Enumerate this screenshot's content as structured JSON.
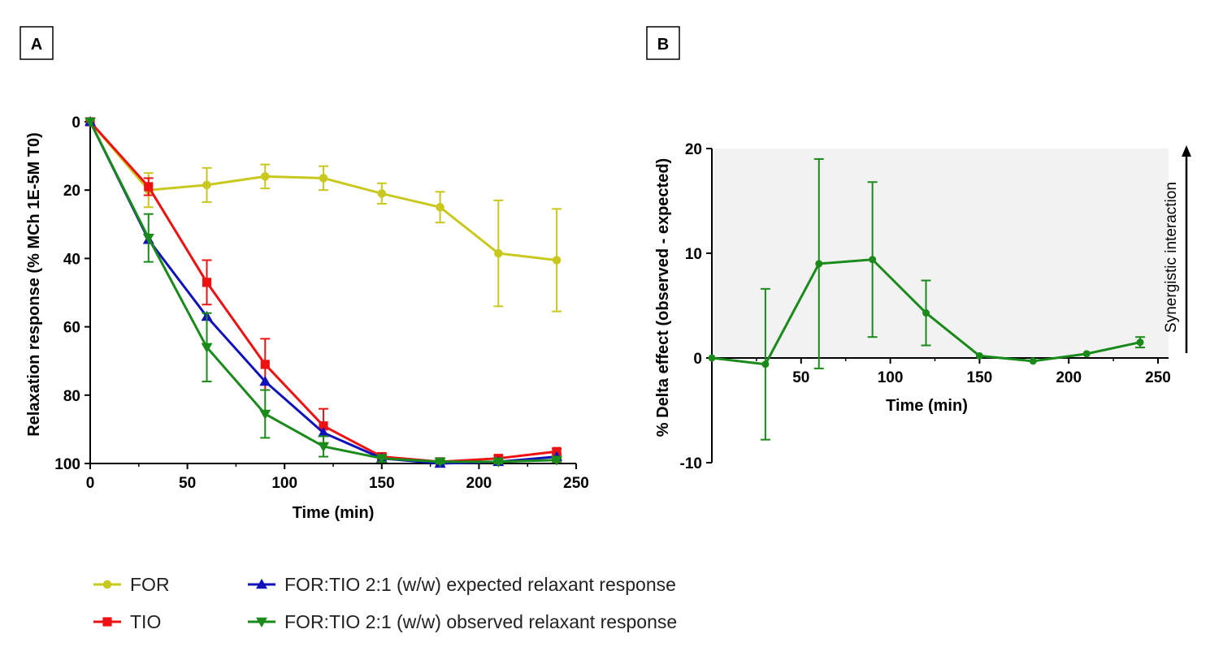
{
  "colors": {
    "FOR": "#c8c81e",
    "TIO": "#ee1111",
    "expected": "#1111bb",
    "observed": "#1a8a1a",
    "shade": "#f2f2f2"
  },
  "panels": {
    "A": "A",
    "B": "B"
  },
  "chart_data": [
    {
      "panel": "A",
      "type": "line",
      "xlabel": "Time (min)",
      "ylabel": "Relaxation response (% MCh 1E-5M T0)",
      "xlim": [
        0,
        250
      ],
      "ylim": [
        100,
        0
      ],
      "y_inverted": true,
      "xticks": [
        "0",
        "50",
        "100",
        "150",
        "200",
        "250"
      ],
      "yticks": [
        "0",
        "20",
        "40",
        "60",
        "80",
        "100"
      ],
      "series": [
        {
          "name": "FOR",
          "marker": "circle",
          "x": [
            0,
            30,
            60,
            90,
            120,
            150,
            180,
            210,
            240
          ],
          "y": [
            0,
            20,
            18.5,
            16,
            16.5,
            21,
            25,
            38.5,
            40.5
          ],
          "err": [
            0,
            5,
            5,
            3.5,
            3.5,
            3,
            4.5,
            15.5,
            15
          ]
        },
        {
          "name": "TIO",
          "marker": "square",
          "x": [
            0,
            30,
            60,
            90,
            120,
            150,
            180,
            210,
            240
          ],
          "y": [
            0,
            19,
            47,
            71,
            89,
            98,
            99.5,
            98.5,
            96.5
          ],
          "err": [
            0,
            2.5,
            6.5,
            7.5,
            5,
            1,
            0.5,
            0.8,
            0.8
          ]
        },
        {
          "name": "FOR:TIO 2:1 (w/w) expected relaxant response",
          "marker": "triangle-up",
          "x": [
            0,
            30,
            60,
            90,
            120,
            150,
            180,
            210,
            240
          ],
          "y": [
            0,
            34.5,
            57,
            76,
            91,
            98.5,
            100,
            99.5,
            98
          ],
          "err": [
            0,
            0,
            0,
            0,
            0,
            0,
            0,
            0,
            0
          ]
        },
        {
          "name": "FOR:TIO 2:1 (w/w) observed relaxant response",
          "marker": "triangle-down",
          "x": [
            0,
            30,
            60,
            90,
            120,
            150,
            180,
            210,
            240
          ],
          "y": [
            0,
            34,
            66,
            85.5,
            95,
            98.5,
            99.5,
            99.5,
            99
          ],
          "err": [
            0,
            7,
            10,
            7,
            3,
            1,
            0.5,
            0.5,
            0.5
          ]
        }
      ]
    },
    {
      "panel": "B",
      "type": "line",
      "xlabel": "Time (min)",
      "ylabel": "% Delta effect (observed - expected)",
      "xlim": [
        0,
        250
      ],
      "ylim": [
        -10,
        20
      ],
      "xticks": [
        "50",
        "100",
        "150",
        "200",
        "250"
      ],
      "yticks": [
        "-10",
        "0",
        "10",
        "20"
      ],
      "shaded_region": [
        0,
        20
      ],
      "annotation": "Synergistic interaction",
      "series": [
        {
          "name": "FOR:TIO 2:1 (w/w) delta",
          "marker": "circle",
          "x": [
            0,
            30,
            60,
            90,
            120,
            150,
            180,
            210,
            240
          ],
          "y": [
            0,
            -0.6,
            9,
            9.4,
            4.3,
            0.2,
            -0.3,
            0.4,
            1.5
          ],
          "err": [
            0,
            7.2,
            10,
            7.4,
            3.1,
            0,
            0,
            0,
            0.5
          ]
        }
      ]
    }
  ],
  "legend": [
    {
      "label": "FOR",
      "marker": "circle",
      "color": "#c8c81e"
    },
    {
      "label": "TIO",
      "marker": "square",
      "color": "#ee1111"
    },
    {
      "label": "FOR:TIO 2:1 (w/w) expected relaxant response",
      "marker": "triangle-up",
      "color": "#1111bb"
    },
    {
      "label": "FOR:TIO 2:1 (w/w) observed relaxant response",
      "marker": "triangle-down",
      "color": "#1a8a1a"
    }
  ]
}
